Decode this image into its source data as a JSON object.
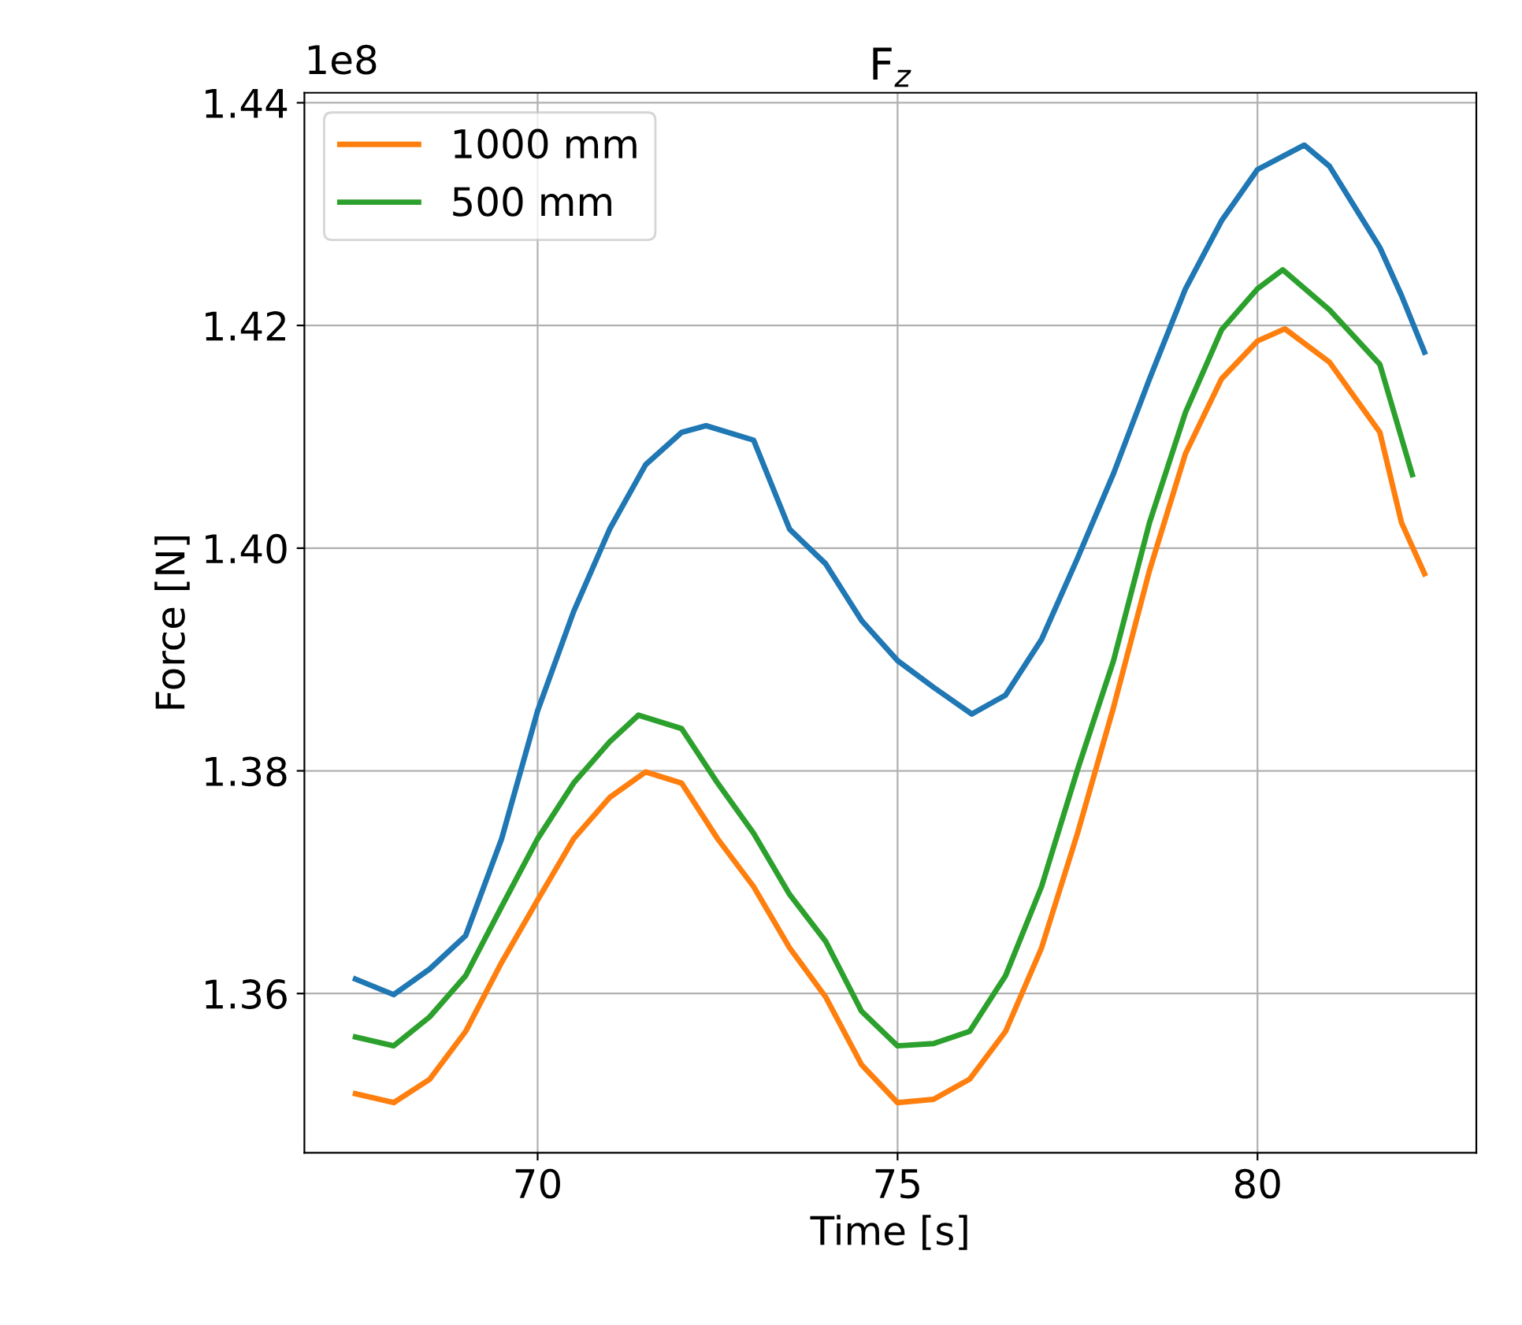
{
  "chart_data": {
    "type": "line",
    "title": "F$_{z}$",
    "xlabel": "Time [s]",
    "ylabel": "Force [N]",
    "annotations": [
      "1e8"
    ],
    "xlim": [
      66.76,
      83.04
    ],
    "xticks": [
      70,
      75,
      80
    ],
    "ylim": [
      1.3457,
      1.4409
    ],
    "yticks": [
      {
        "value": 1.36,
        "label": "1.36"
      },
      {
        "value": 1.38,
        "label": "1.38"
      },
      {
        "value": 1.4,
        "label": "1.40"
      },
      {
        "value": 1.42,
        "label": "1.42"
      },
      {
        "value": 1.44,
        "label": "1.44"
      }
    ],
    "grid": true,
    "legend": "top left",
    "series": [
      {
        "color": "#1f77b4",
        "x": [
          67.47,
          68,
          68.5,
          69,
          69.5,
          70,
          70.5,
          71,
          71.5,
          72,
          72.34,
          73,
          73.5,
          74,
          74.5,
          75,
          75.5,
          76.03,
          76.5,
          77,
          77.5,
          78,
          78.5,
          79,
          79.5,
          80,
          80.65,
          81,
          81.7,
          82,
          82.32
        ],
        "values": [
          1.3613,
          1.3599,
          1.3622,
          1.3652,
          1.3739,
          1.3854,
          1.3943,
          1.4017,
          1.4075,
          1.4104,
          1.411,
          1.4097,
          1.4017,
          1.3986,
          1.3935,
          1.3899,
          1.3875,
          1.3851,
          1.3868,
          1.3918,
          1.3991,
          1.4067,
          1.4152,
          1.4233,
          1.4294,
          1.434,
          1.4362,
          1.4343,
          1.427,
          1.4227,
          1.4176
        ]
      },
      {
        "name": "1000 mm",
        "color": "#ff7f0e",
        "x": [
          67.47,
          68,
          68.5,
          69,
          69.5,
          70,
          70.5,
          71,
          71.5,
          72,
          72.5,
          73,
          73.5,
          74,
          74.5,
          75,
          75.5,
          76,
          76.5,
          77,
          77.5,
          78,
          78.5,
          79,
          79.5,
          80,
          80.38,
          81,
          81.7,
          82,
          82.32
        ],
        "values": [
          1.351,
          1.3502,
          1.3523,
          1.3566,
          1.3628,
          1.3684,
          1.3739,
          1.3776,
          1.3799,
          1.3789,
          1.3739,
          1.3696,
          1.3641,
          1.3597,
          1.3536,
          1.3502,
          1.3505,
          1.3523,
          1.3566,
          1.3641,
          1.3744,
          1.3857,
          1.398,
          1.4085,
          1.4152,
          1.4186,
          1.4197,
          1.4167,
          1.4104,
          1.4023,
          1.3977
        ]
      },
      {
        "name": "500 mm",
        "color": "#2ca02c",
        "x": [
          67.47,
          68,
          68.5,
          69,
          69.5,
          70,
          70.5,
          71,
          71.4,
          72,
          72.5,
          73,
          73.5,
          74,
          74.5,
          75,
          75.5,
          76,
          76.5,
          77,
          77.5,
          78,
          78.5,
          79,
          79.5,
          80,
          80.35,
          81,
          81.7,
          82.15
        ],
        "values": [
          1.3561,
          1.3553,
          1.3579,
          1.3616,
          1.3678,
          1.3739,
          1.3789,
          1.3826,
          1.385,
          1.3838,
          1.3789,
          1.3744,
          1.3689,
          1.3647,
          1.3584,
          1.3553,
          1.3555,
          1.3566,
          1.3616,
          1.3696,
          1.3801,
          1.3899,
          1.4023,
          1.4122,
          1.4196,
          1.4233,
          1.425,
          1.4214,
          1.4165,
          1.4066
        ]
      }
    ]
  }
}
